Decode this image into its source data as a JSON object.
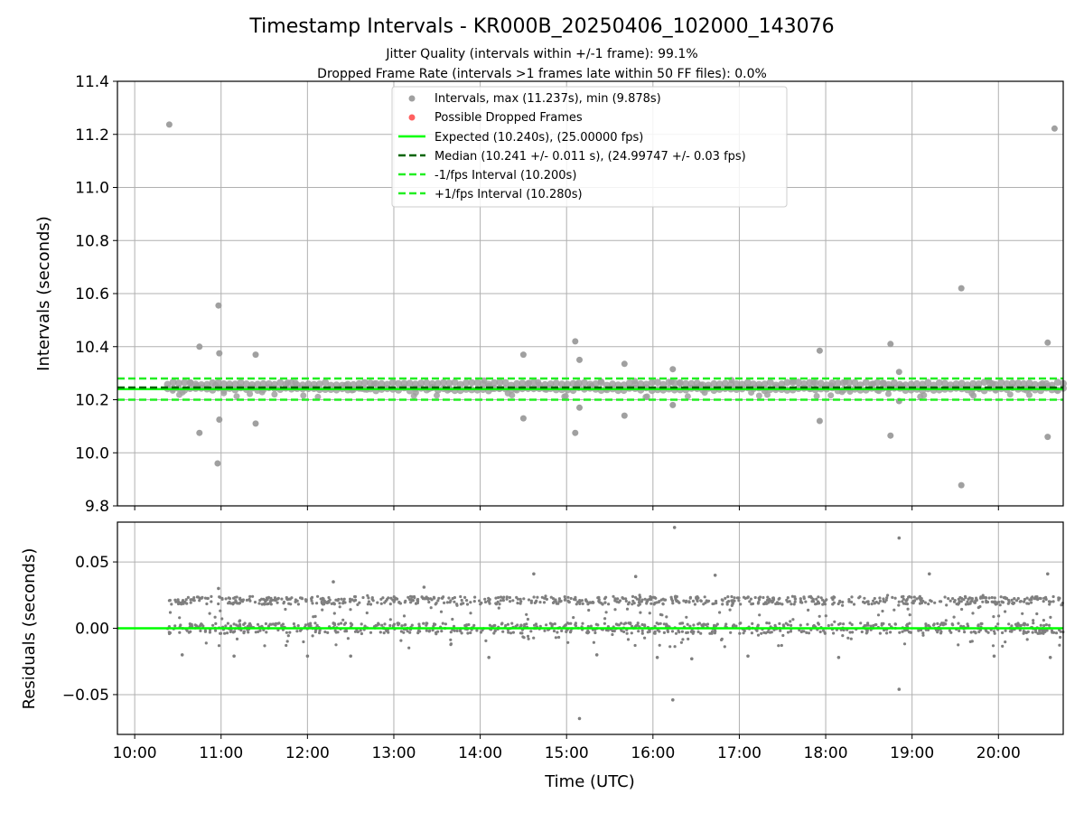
{
  "colors": {
    "background": "#ffffff",
    "interval_points": "#a0a0a0",
    "dropped_points": "#ff6060",
    "residual_points": "#7f7f7f",
    "expected_line": "#00ff00",
    "median_line": "#006400",
    "bound_line": "#22ee22",
    "grid": "#b0b0b0"
  },
  "chart_data": [
    {
      "type": "scatter",
      "title": "Timestamp Intervals - KR000B_20250406_102000_143076",
      "subtitle_1": "Jitter Quality (intervals within +/-1 frame): 99.1%",
      "subtitle_2": "Dropped Frame Rate (intervals >1 frames late within 50 FF files): 0.0%",
      "ylabel": "Intervals (seconds)",
      "xlim": [
        9.8,
        20.75
      ],
      "ylim": [
        9.8,
        11.4
      ],
      "yticks": [
        9.8,
        10.0,
        10.2,
        10.4,
        10.6,
        10.8,
        11.0,
        11.2,
        11.4
      ],
      "ytick_labels": [
        "9.8",
        "10.0",
        "10.2",
        "10.4",
        "10.6",
        "10.8",
        "11.0",
        "11.2",
        "11.4"
      ],
      "grid": true,
      "legend_position": "top-center",
      "legend": [
        {
          "label": "Intervals, max (11.237s), min (9.878s)",
          "kind": "point-gray"
        },
        {
          "label": "Possible Dropped Frames",
          "kind": "point-red"
        },
        {
          "label": "Expected (10.240s), (25.00000 fps)",
          "kind": "line-expected"
        },
        {
          "label": "Median (10.241 +/- 0.011 s), (24.99747 +/- 0.03 fps)",
          "kind": "line-median"
        },
        {
          "label": "-1/fps Interval (10.200s)",
          "kind": "line-bound"
        },
        {
          "label": "+1/fps Interval (10.280s)",
          "kind": "line-bound"
        }
      ],
      "hlines": {
        "expected": 10.24,
        "median": 10.241,
        "lower": 10.2,
        "upper": 10.28
      },
      "band": {
        "x_start": 10.38,
        "x_end": 20.75,
        "levels": [
          10.24,
          10.26
        ],
        "count": 160
      },
      "outliers": [
        {
          "x": 10.4,
          "y": 11.237
        },
        {
          "x": 10.75,
          "y": 10.4
        },
        {
          "x": 10.75,
          "y": 10.075
        },
        {
          "x": 10.97,
          "y": 10.555
        },
        {
          "x": 10.98,
          "y": 10.375
        },
        {
          "x": 10.98,
          "y": 10.125
        },
        {
          "x": 10.96,
          "y": 9.96
        },
        {
          "x": 11.4,
          "y": 10.37
        },
        {
          "x": 11.4,
          "y": 10.11
        },
        {
          "x": 14.5,
          "y": 10.37
        },
        {
          "x": 14.5,
          "y": 10.13
        },
        {
          "x": 15.1,
          "y": 10.42
        },
        {
          "x": 15.15,
          "y": 10.35
        },
        {
          "x": 15.15,
          "y": 10.17
        },
        {
          "x": 15.1,
          "y": 10.075
        },
        {
          "x": 15.67,
          "y": 10.335
        },
        {
          "x": 15.67,
          "y": 10.14
        },
        {
          "x": 16.23,
          "y": 10.315
        },
        {
          "x": 16.23,
          "y": 10.18
        },
        {
          "x": 17.93,
          "y": 10.385
        },
        {
          "x": 17.93,
          "y": 10.12
        },
        {
          "x": 18.75,
          "y": 10.41
        },
        {
          "x": 18.85,
          "y": 10.305
        },
        {
          "x": 18.85,
          "y": 10.195
        },
        {
          "x": 18.75,
          "y": 10.065
        },
        {
          "x": 19.57,
          "y": 10.62
        },
        {
          "x": 19.57,
          "y": 9.878
        },
        {
          "x": 20.57,
          "y": 10.415
        },
        {
          "x": 20.57,
          "y": 10.06
        },
        {
          "x": 20.65,
          "y": 11.222
        }
      ]
    },
    {
      "type": "scatter",
      "xlabel": "Time (UTC)",
      "ylabel": "Residuals (seconds)",
      "xlim": [
        9.8,
        20.75
      ],
      "ylim": [
        -0.08,
        0.08
      ],
      "xticks": [
        10,
        11,
        12,
        13,
        14,
        15,
        16,
        17,
        18,
        19,
        20
      ],
      "xtick_labels": [
        "10:00",
        "11:00",
        "12:00",
        "13:00",
        "14:00",
        "15:00",
        "16:00",
        "17:00",
        "18:00",
        "19:00",
        "20:00"
      ],
      "yticks": [
        -0.05,
        0.0,
        0.05
      ],
      "ytick_labels": [
        "−0.05",
        "0.00",
        "0.05"
      ],
      "grid": true,
      "hline": 0.0,
      "bands": [
        {
          "center": 0.021,
          "spread": 0.003
        },
        {
          "center": 0.0,
          "spread": 0.004
        }
      ],
      "band_x_start": 10.38,
      "band_x_end": 20.75,
      "points_per_band": 700,
      "outliers": [
        {
          "x": 16.25,
          "y": 0.076
        },
        {
          "x": 18.85,
          "y": 0.068
        },
        {
          "x": 15.15,
          "y": -0.068
        },
        {
          "x": 16.23,
          "y": -0.054
        },
        {
          "x": 18.85,
          "y": -0.046
        },
        {
          "x": 12.3,
          "y": 0.035
        },
        {
          "x": 14.62,
          "y": 0.041
        },
        {
          "x": 16.72,
          "y": 0.04
        },
        {
          "x": 15.8,
          "y": 0.039
        },
        {
          "x": 19.2,
          "y": 0.041
        },
        {
          "x": 20.57,
          "y": 0.041
        },
        {
          "x": 10.97,
          "y": 0.03
        },
        {
          "x": 13.35,
          "y": 0.031
        },
        {
          "x": 10.55,
          "y": -0.02
        },
        {
          "x": 11.15,
          "y": -0.021
        },
        {
          "x": 12.0,
          "y": -0.021
        },
        {
          "x": 12.5,
          "y": -0.021
        },
        {
          "x": 14.1,
          "y": -0.022
        },
        {
          "x": 15.35,
          "y": -0.02
        },
        {
          "x": 16.05,
          "y": -0.022
        },
        {
          "x": 16.45,
          "y": -0.023
        },
        {
          "x": 17.1,
          "y": -0.021
        },
        {
          "x": 18.15,
          "y": -0.022
        },
        {
          "x": 19.95,
          "y": -0.021
        },
        {
          "x": 20.6,
          "y": -0.022
        }
      ]
    }
  ]
}
